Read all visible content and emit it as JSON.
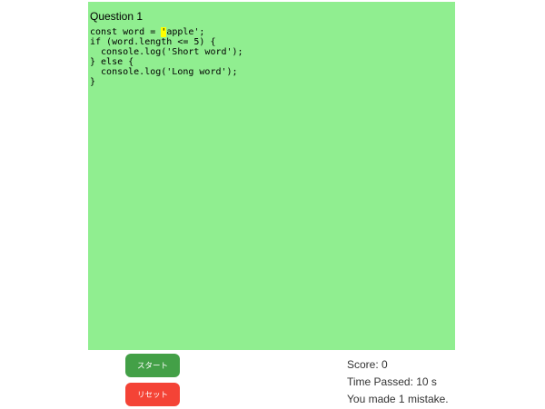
{
  "panel": {
    "question_label": "Question 1",
    "background_color": "#90ee90",
    "highlight_color": "#ffff00",
    "code": {
      "before": "const word = ",
      "current": "'",
      "after": "apple';\nif (word.length <= 5) {\n  console.log('Short word');\n} else {\n  console.log('Long word');\n}"
    }
  },
  "buttons": {
    "start_label": "スタート",
    "start_color": "#43a047",
    "reset_label": "リセット",
    "reset_color": "#f44336"
  },
  "stats": {
    "score": "Score: 0",
    "time": "Time Passed: 10 s",
    "mistakes": "You made 1 mistake."
  }
}
